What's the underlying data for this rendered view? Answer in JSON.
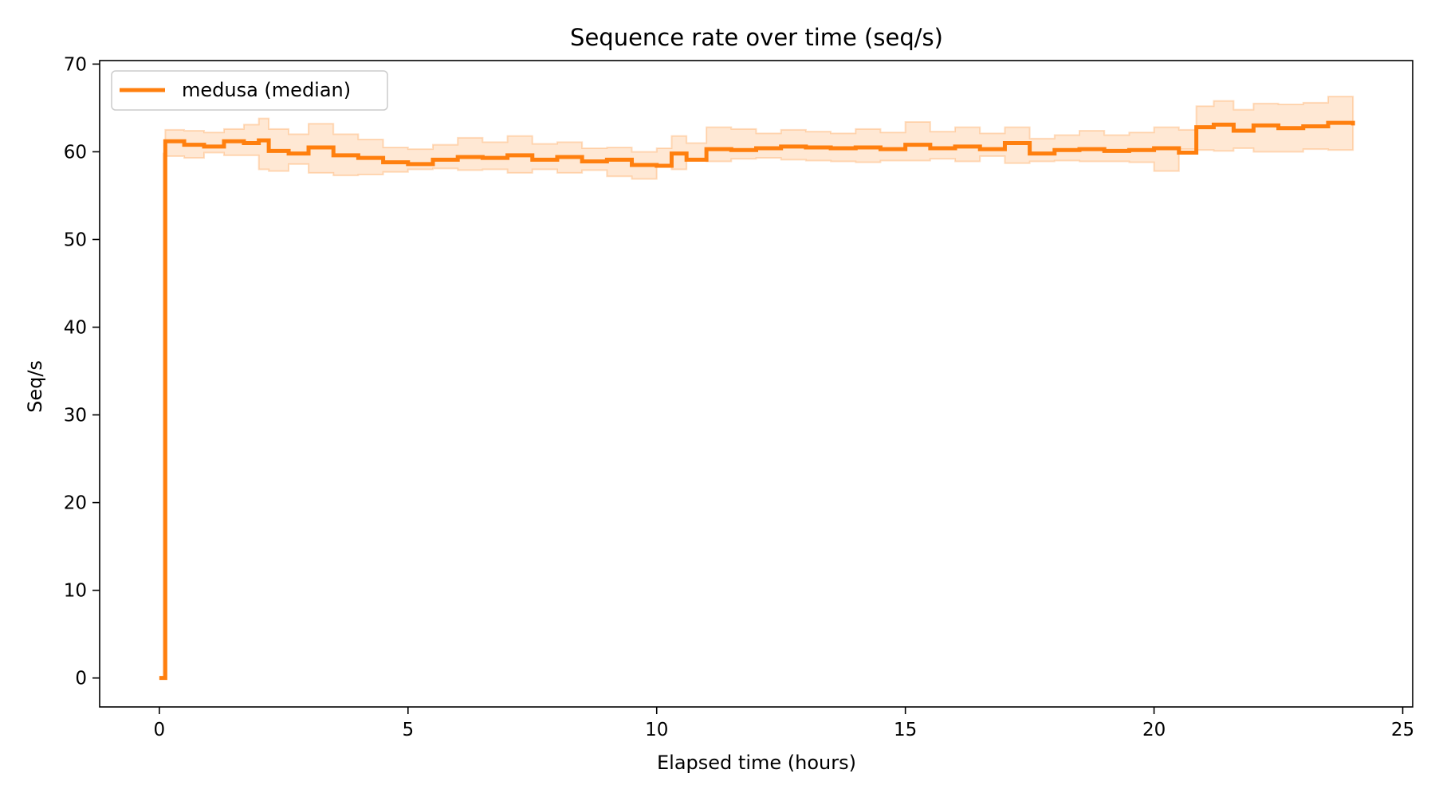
{
  "chart_data": {
    "type": "line",
    "title": "Sequence rate over time (seq/s)",
    "xlabel": "Elapsed time (hours)",
    "ylabel": "Seq/s",
    "xlim": [
      -1.2,
      25.2
    ],
    "ylim": [
      -3.3,
      70.4
    ],
    "x_ticks": [
      0,
      5,
      10,
      15,
      20,
      25
    ],
    "y_ticks": [
      0,
      10,
      20,
      30,
      40,
      50,
      60,
      70
    ],
    "x_tick_labels": [
      "0",
      "5",
      "10",
      "15",
      "20",
      "25"
    ],
    "y_tick_labels": [
      "0",
      "10",
      "20",
      "30",
      "40",
      "50",
      "60",
      "70"
    ],
    "grid": false,
    "legend_position": "top-left",
    "step": true,
    "series": [
      {
        "name": "medusa (median)",
        "color": "#ff7f0e",
        "band_color": "#ff7f0e",
        "x": [
          0,
          0.08,
          0.12,
          0.5,
          0.9,
          1.3,
          1.7,
          2.0,
          2.2,
          2.6,
          3.0,
          3.5,
          4.0,
          4.5,
          5.0,
          5.5,
          6.0,
          6.5,
          7.0,
          7.5,
          8.0,
          8.5,
          9.0,
          9.5,
          10.0,
          10.3,
          10.6,
          11.0,
          11.5,
          12.0,
          12.5,
          13.0,
          13.5,
          14.0,
          14.5,
          15.0,
          15.5,
          16.0,
          16.5,
          17.0,
          17.5,
          18.0,
          18.5,
          19.0,
          19.5,
          20.0,
          20.5,
          20.85,
          21.2,
          21.6,
          22.0,
          22.5,
          23.0,
          23.5,
          24.0
        ],
        "y": [
          0,
          0,
          61.2,
          60.8,
          60.6,
          61.2,
          61.0,
          61.3,
          60.1,
          59.8,
          60.5,
          59.6,
          59.3,
          58.8,
          58.6,
          59.1,
          59.4,
          59.3,
          59.6,
          59.1,
          59.4,
          58.9,
          59.1,
          58.5,
          58.4,
          59.8,
          59.1,
          60.3,
          60.2,
          60.4,
          60.6,
          60.5,
          60.4,
          60.5,
          60.3,
          60.8,
          60.4,
          60.6,
          60.3,
          61.0,
          59.8,
          60.2,
          60.3,
          60.1,
          60.2,
          60.4,
          59.9,
          62.8,
          63.1,
          62.4,
          63.0,
          62.7,
          62.9,
          63.3,
          63.0
        ],
        "band_low": [
          0,
          0,
          59.8,
          59.5,
          59.3,
          59.9,
          59.6,
          59.6,
          58.0,
          57.8,
          58.6,
          57.6,
          57.3,
          57.4,
          57.7,
          58.0,
          58.1,
          57.9,
          58.0,
          57.6,
          58.0,
          57.6,
          57.9,
          57.2,
          56.9,
          58.3,
          58.0,
          59.0,
          58.9,
          59.2,
          59.3,
          59.1,
          59.0,
          58.9,
          58.8,
          59.0,
          59.0,
          59.2,
          58.9,
          59.5,
          58.7,
          58.9,
          59.0,
          58.9,
          58.9,
          58.8,
          57.8,
          60.3,
          60.2,
          60.1,
          60.4,
          60.0,
          60.0,
          60.3,
          60.2
        ],
        "band_high": [
          0,
          0,
          62.5,
          62.4,
          62.2,
          62.6,
          63.1,
          63.8,
          62.6,
          62.0,
          63.2,
          62.0,
          61.4,
          60.5,
          60.3,
          60.8,
          61.6,
          61.1,
          61.8,
          60.9,
          61.1,
          60.4,
          60.5,
          60.0,
          60.4,
          61.8,
          61.0,
          62.8,
          62.6,
          62.1,
          62.5,
          62.3,
          62.1,
          62.6,
          62.2,
          63.4,
          62.3,
          62.8,
          62.1,
          62.8,
          61.5,
          61.9,
          62.4,
          61.9,
          62.2,
          62.8,
          62.5,
          65.2,
          65.8,
          64.8,
          65.5,
          65.4,
          65.6,
          66.3,
          65.8
        ]
      }
    ]
  }
}
